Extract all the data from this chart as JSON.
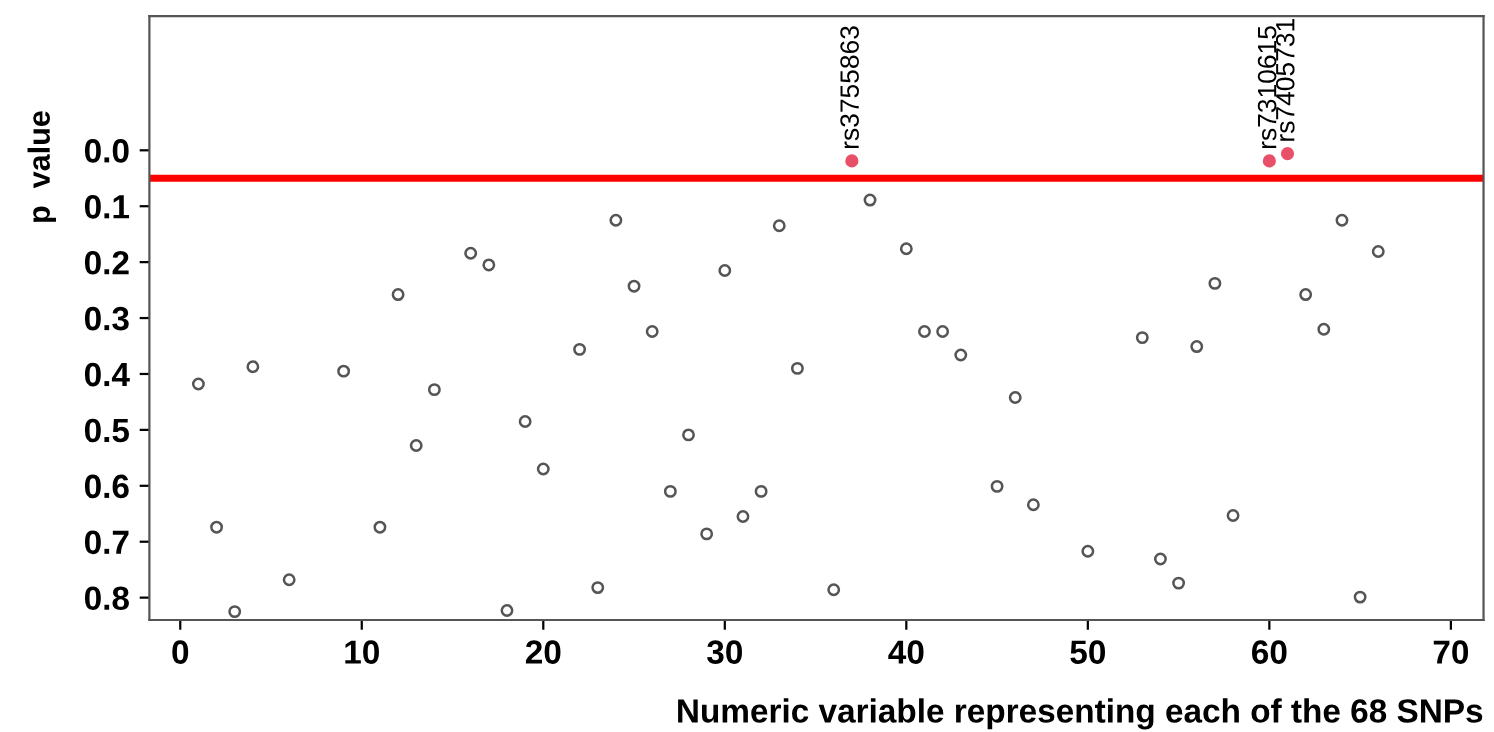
{
  "chart_data": {
    "type": "scatter",
    "xlabel": "Numeric variable representing each of the 68 SNPs",
    "ylabel": "p  value",
    "xlim": [
      -1.7,
      71.8
    ],
    "ylim": [
      0.84,
      -0.24
    ],
    "xticks": [
      0,
      10,
      20,
      30,
      40,
      50,
      60,
      70
    ],
    "yticks": [
      {
        "value": 0,
        "label": "0.0"
      },
      {
        "value": 0.1,
        "label": "0.1"
      },
      {
        "value": 0.2,
        "label": "0.2"
      },
      {
        "value": 0.3,
        "label": "0.3"
      },
      {
        "value": 0.4,
        "label": "0.4"
      },
      {
        "value": 0.5,
        "label": "0.5"
      },
      {
        "value": 0.6,
        "label": "0.6"
      },
      {
        "value": 0.7,
        "label": "0.7"
      },
      {
        "value": 0.8,
        "label": "0.8"
      }
    ],
    "grid": false,
    "legend": false,
    "marker": "circle",
    "series": [
      {
        "color": "#555555",
        "x": [
          1,
          2,
          3,
          4,
          6,
          9,
          11,
          12,
          13,
          14,
          16,
          17,
          18,
          19,
          20,
          22,
          23,
          24,
          25,
          26,
          27,
          28,
          29,
          30,
          31,
          32,
          33,
          34,
          36,
          38,
          40,
          41,
          42,
          43,
          45,
          46,
          47,
          50,
          53,
          54,
          55,
          56,
          57,
          58,
          62,
          63,
          64,
          65,
          66
        ],
        "values": [
          0.418,
          0.674,
          0.825,
          0.387,
          0.768,
          0.395,
          0.674,
          0.258,
          0.528,
          0.428,
          0.184,
          0.205,
          0.823,
          0.485,
          0.57,
          0.356,
          0.782,
          0.125,
          0.243,
          0.324,
          0.61,
          0.509,
          0.686,
          0.215,
          0.655,
          0.61,
          0.135,
          0.39,
          0.786,
          0.089,
          0.176,
          0.324,
          0.324,
          0.366,
          0.601,
          0.442,
          0.634,
          0.717,
          0.335,
          0.731,
          0.774,
          0.351,
          0.238,
          0.653,
          0.258,
          0.32,
          0.125,
          0.799,
          0.181
        ]
      },
      {
        "color": "#e8506a",
        "x": [
          37,
          60,
          61
        ],
        "values": [
          0.019,
          0.019,
          0.006
        ]
      }
    ],
    "ref_lines": [
      {
        "axis": "y",
        "value": 0.05,
        "color": "#ff0000",
        "line_style": "solid"
      }
    ],
    "annotations": [
      {
        "text": "rs3755863",
        "x": 37,
        "y": 0.019
      },
      {
        "text": "rs7310615",
        "x": 60,
        "y": 0.019
      },
      {
        "text": "rs7405731",
        "x": 61,
        "y": 0.006
      }
    ]
  }
}
